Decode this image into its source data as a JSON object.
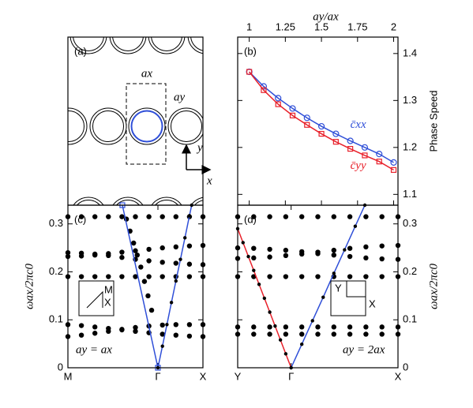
{
  "diagram": {
    "label": "(a)",
    "period_x": "ax",
    "period_y": "ay",
    "axis_x": "x",
    "axis_y": "y"
  },
  "chart_data": [
    {
      "type": "line",
      "label": "(b)",
      "xlabel": "ay/ax",
      "ylabel": "Phase Speed",
      "x": [
        1,
        1.1,
        1.2,
        1.3,
        1.4,
        1.5,
        1.6,
        1.7,
        1.8,
        1.9,
        2
      ],
      "xlim": [
        0.92,
        2.03
      ],
      "xticks": [
        1,
        1.25,
        1.5,
        1.75,
        2
      ],
      "ylim": [
        1.077,
        1.435
      ],
      "yticks": [
        1.1,
        1.2,
        1.3,
        1.4
      ],
      "series": [
        {
          "name": "c̄xx",
          "color": "#2f4fd8",
          "marker": "circle",
          "values": [
            1.361,
            1.33,
            1.305,
            1.283,
            1.263,
            1.245,
            1.229,
            1.214,
            1.2,
            1.186,
            1.168
          ]
        },
        {
          "name": "c̄yy",
          "color": "#e8202a",
          "marker": "square",
          "values": [
            1.361,
            1.322,
            1.292,
            1.268,
            1.248,
            1.229,
            1.212,
            1.197,
            1.183,
            1.17,
            1.152
          ]
        }
      ]
    },
    {
      "type": "scatter",
      "label": "(c)",
      "ylabel": "ωax/2πc0",
      "note": "ay = ax",
      "inset": [
        "M",
        "X"
      ],
      "x": [
        0,
        0.3,
        0.6,
        0.9,
        1.2,
        1.5,
        1.8,
        2.1,
        2.4,
        2.7,
        3
      ],
      "xlim": [
        0,
        3
      ],
      "xticks": [
        {
          "value": 0,
          "label": "M"
        },
        {
          "value": 2,
          "label": "Γ"
        },
        {
          "value": 3,
          "label": "X"
        }
      ],
      "ylim": [
        0,
        0.339
      ],
      "yticks": [
        0,
        0.1,
        0.2,
        0.3
      ],
      "series": [
        {
          "color": "#000000",
          "style": "dots",
          "values": [
            0.315,
            0.315,
            0.315,
            0.315,
            0.315,
            0.315,
            0.315,
            0.315,
            0.315,
            0.315,
            0.315
          ]
        },
        {
          "color": "#000000",
          "style": "dots",
          "values": [
            0.19,
            0.19,
            0.19,
            0.19,
            0.19,
            0.19,
            0.19,
            0.19,
            0.19,
            0.19,
            0.19
          ]
        },
        {
          "color": "#000000",
          "style": "dots",
          "values": [
            0.24,
            0.239,
            0.237,
            0.234,
            0.23,
            0.226,
            0.223,
            0.22,
            0.218,
            0.216,
            0.215
          ]
        },
        {
          "color": "#000000",
          "style": "dots",
          "values": [
            0.232,
            0.233,
            0.235,
            0.238,
            0.241,
            0.244,
            0.247,
            0.25,
            0.252,
            0.254,
            0.255
          ]
        },
        {
          "color": "#000000",
          "style": "dots",
          "values": [
            0.09,
            0.088,
            0.085,
            0.082,
            0.079,
            0.076,
            0.073,
            0.07,
            0.068,
            0.066,
            0.065
          ]
        },
        {
          "color": "#000000",
          "style": "dots",
          "values": [
            0.065,
            0.068,
            0.072,
            0.076,
            0.08,
            0.084,
            0.087,
            0.089,
            0.09,
            0.09,
            0.09
          ]
        },
        {
          "color": "#000000",
          "style": "dots",
          "x": [
            1.3,
            1.38,
            1.46,
            1.54,
            1.62,
            1.7,
            1.78,
            1.86
          ],
          "values": [
            0.31,
            0.285,
            0.26,
            0.235,
            0.21,
            0.18,
            0.15,
            0.12
          ]
        },
        {
          "color": "#2f4fd8",
          "style": "line",
          "x": [
            1.21,
            2
          ],
          "values": [
            0.339,
            0
          ]
        },
        {
          "color": "#2f4fd8",
          "style": "line-dots",
          "x": [
            2,
            2.1,
            2.2,
            2.3,
            2.4,
            2.5,
            2.6,
            2.7,
            2.75
          ],
          "values": [
            0,
            0.045,
            0.09,
            0.136,
            0.181,
            0.226,
            0.271,
            0.317,
            0.339
          ]
        }
      ]
    },
    {
      "type": "scatter",
      "label": "(d)",
      "ylabel": "ωax/2πc0",
      "note": "ay = 2ax",
      "inset": [
        "Y",
        "X"
      ],
      "x": [
        0,
        0.3,
        0.6,
        0.9,
        1.2,
        1.5,
        1.8,
        2.1,
        2.4,
        2.7,
        3
      ],
      "xlim": [
        0,
        3
      ],
      "xticks": [
        {
          "value": 0,
          "label": "Y"
        },
        {
          "value": 1,
          "label": "Γ"
        },
        {
          "value": 3,
          "label": "X"
        }
      ],
      "ylim": [
        0,
        0.339
      ],
      "yticks": [
        0,
        0.1,
        0.2,
        0.3
      ],
      "series": [
        {
          "color": "#000000",
          "style": "dots",
          "values": [
            0.315,
            0.315,
            0.315,
            0.315,
            0.315,
            0.315,
            0.315,
            0.315,
            0.315,
            0.315,
            0.315
          ]
        },
        {
          "color": "#000000",
          "style": "dots",
          "values": [
            0.25,
            0.249,
            0.247,
            0.245,
            0.242,
            0.238,
            0.235,
            0.232,
            0.229,
            0.227,
            0.226
          ]
        },
        {
          "color": "#000000",
          "style": "dots",
          "values": [
            0.228,
            0.229,
            0.231,
            0.234,
            0.237,
            0.241,
            0.245,
            0.249,
            0.252,
            0.254,
            0.255
          ]
        },
        {
          "color": "#000000",
          "style": "dots",
          "values": [
            0.19,
            0.19,
            0.19,
            0.19,
            0.19,
            0.19,
            0.19,
            0.19,
            0.19,
            0.19,
            0.19
          ]
        },
        {
          "color": "#000000",
          "style": "dots",
          "values": [
            0.085,
            0.085,
            0.085,
            0.085,
            0.085,
            0.085,
            0.085,
            0.085,
            0.085,
            0.085,
            0.085
          ]
        },
        {
          "color": "#000000",
          "style": "dots",
          "values": [
            0.07,
            0.07,
            0.07,
            0.07,
            0.07,
            0.07,
            0.07,
            0.07,
            0.07,
            0.07,
            0.07
          ]
        },
        {
          "color": "#e8202a",
          "style": "line-dots",
          "x": [
            0,
            0.1,
            0.2,
            0.3,
            0.4,
            0.5,
            0.6,
            0.7,
            0.8,
            0.9,
            1
          ],
          "values": [
            0.29,
            0.261,
            0.232,
            0.203,
            0.174,
            0.145,
            0.116,
            0.087,
            0.058,
            0.029,
            0
          ]
        },
        {
          "color": "#2f4fd8",
          "style": "line-dots",
          "x": [
            1,
            1.2,
            1.4,
            1.6,
            1.8,
            2,
            2.2,
            2.38
          ],
          "values": [
            0,
            0.049,
            0.098,
            0.147,
            0.197,
            0.246,
            0.295,
            0.339
          ]
        }
      ]
    }
  ]
}
